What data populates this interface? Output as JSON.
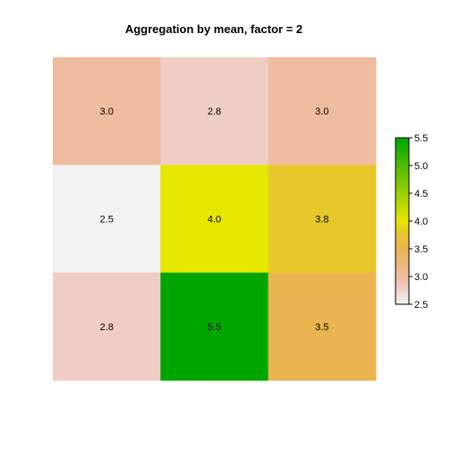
{
  "chart_data": {
    "type": "heatmap",
    "title": "Aggregation by mean, factor = 2",
    "rows": 3,
    "cols": 3,
    "values": [
      [
        3.0,
        2.8,
        3.0
      ],
      [
        2.5,
        4.0,
        3.8
      ],
      [
        2.8,
        5.5,
        3.5
      ]
    ],
    "cell_labels": [
      [
        "3.0",
        "2.8",
        "3.0"
      ],
      [
        "2.5",
        "4.0",
        "3.8"
      ],
      [
        "2.8",
        "5.5",
        "3.5"
      ]
    ],
    "colorbar": {
      "min": 2.5,
      "max": 5.5,
      "ticks": [
        2.5,
        3.0,
        3.5,
        4.0,
        4.5,
        5.0,
        5.5
      ],
      "tick_labels": [
        "2.5",
        "3.0",
        "3.5",
        "4.0",
        "4.5",
        "5.0",
        "5.5"
      ],
      "placement": "right"
    },
    "color_scale": [
      {
        "value": 2.5,
        "color": "#f2f2f2"
      },
      {
        "value": 2.8,
        "color": "#f0cdc4"
      },
      {
        "value": 3.0,
        "color": "#eebc9f"
      },
      {
        "value": 3.5,
        "color": "#eab551"
      },
      {
        "value": 3.8,
        "color": "#e6c82a"
      },
      {
        "value": 4.0,
        "color": "#e6e600"
      },
      {
        "value": 5.5,
        "color": "#00a600"
      }
    ]
  }
}
